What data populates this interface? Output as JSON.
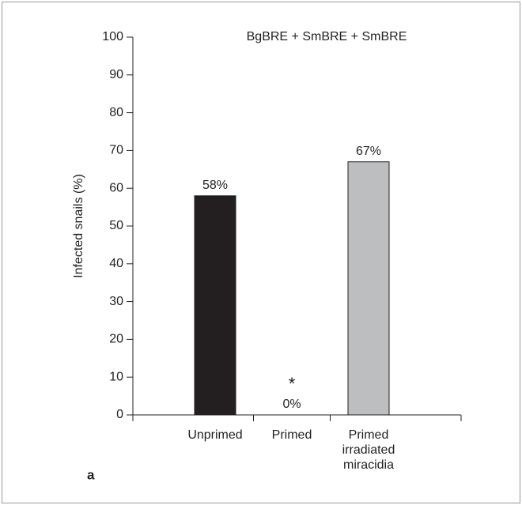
{
  "chart_data": {
    "type": "bar",
    "title": "BgBRE + SmBRE + SmBRE",
    "y_label": "Infected snails (%)",
    "panel_label": "a",
    "categories": [
      "Unprimed",
      "Primed",
      "Primed irradiated miracidia"
    ],
    "values": [
      58,
      0,
      67
    ],
    "value_labels": [
      "58%",
      "0%",
      "67%"
    ],
    "colors": [
      "#231f20",
      "#ffffff",
      "#bcbec0"
    ],
    "annotations": [
      {
        "category": 1,
        "text": "*"
      }
    ],
    "ylim": [
      0,
      100
    ],
    "yticks": [
      0,
      10,
      20,
      30,
      40,
      50,
      60,
      70,
      80,
      90,
      100
    ],
    "grid": false
  }
}
